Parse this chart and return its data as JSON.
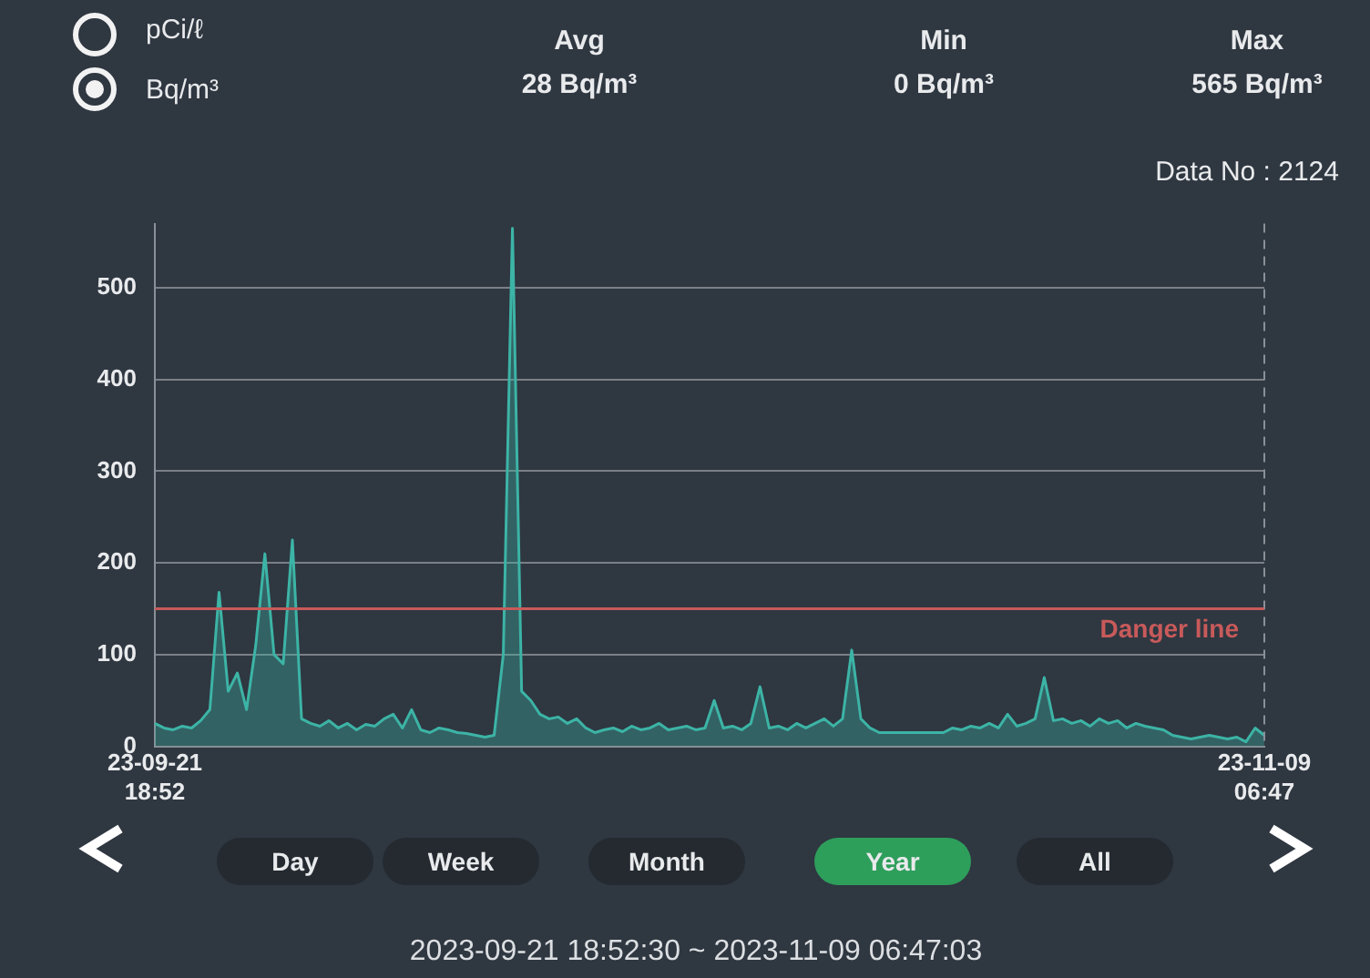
{
  "chart_data": {
    "type": "area",
    "categories": [
      "23-09-21\n18:52",
      null,
      null,
      null,
      null,
      null,
      null,
      null,
      null,
      null,
      null,
      null,
      null,
      null,
      null,
      null,
      null,
      null,
      null,
      null,
      null,
      null,
      null,
      null,
      null,
      null,
      null,
      null,
      null,
      null,
      null,
      null,
      null,
      null,
      null,
      null,
      null,
      null,
      null,
      null,
      null,
      null,
      null,
      null,
      null,
      null,
      null,
      null,
      null,
      null,
      null,
      null,
      null,
      null,
      null,
      null,
      null,
      null,
      null,
      null,
      null,
      null,
      null,
      null,
      null,
      null,
      null,
      null,
      null,
      null,
      null,
      null,
      null,
      null,
      null,
      null,
      null,
      null,
      null,
      null,
      null,
      null,
      null,
      null,
      null,
      null,
      null,
      null,
      null,
      null,
      null,
      null,
      null,
      null,
      null,
      null,
      null,
      null,
      null,
      null,
      null,
      null,
      null,
      null,
      null,
      null,
      null,
      null,
      null,
      null,
      null,
      null,
      null,
      null,
      null,
      null,
      null,
      null,
      null,
      null,
      null,
      "23-11-09\n06:47"
    ],
    "series": [
      {
        "color": "#3cb4a6",
        "values": [
          25,
          20,
          18,
          22,
          20,
          28,
          40,
          168,
          60,
          80,
          40,
          110,
          210,
          100,
          90,
          225,
          30,
          25,
          22,
          28,
          20,
          25,
          18,
          24,
          22,
          30,
          35,
          20,
          40,
          18,
          15,
          20,
          18,
          15,
          14,
          12,
          10,
          12,
          100,
          565,
          60,
          50,
          35,
          30,
          32,
          25,
          30,
          20,
          15,
          18,
          20,
          16,
          22,
          18,
          20,
          25,
          18,
          20,
          22,
          18,
          20,
          50,
          20,
          22,
          18,
          25,
          65,
          20,
          22,
          18,
          25,
          20,
          25,
          30,
          22,
          30,
          105,
          30,
          20,
          15,
          15,
          15,
          15,
          15,
          15,
          15,
          15,
          20,
          18,
          22,
          20,
          25,
          20,
          35,
          22,
          25,
          30,
          75,
          28,
          30,
          25,
          28,
          22,
          30,
          25,
          28,
          20,
          25,
          22,
          20,
          18,
          12,
          10,
          8,
          10,
          12,
          10,
          8,
          10,
          5,
          20,
          12
        ]
      }
    ],
    "ylim": [
      0,
      570
    ],
    "yticks": [
      0,
      100,
      200,
      300,
      400,
      500
    ],
    "grid": "y",
    "ref_lines": [
      {
        "axis": "y",
        "value": 150,
        "label": "Danger line",
        "color": "#c85a5a"
      }
    ],
    "annotations": [
      "pCi/ℓ",
      "Bq/m³",
      "Avg",
      "28 Bq/m³",
      "Min",
      "0 Bq/m³",
      "Max",
      "565 Bq/m³",
      "Data No : 2124",
      "Day",
      "Week",
      "Month",
      "Year",
      "All",
      "2023-09-21 18:52:30 ~ 2023-11-09 06:47:03"
    ]
  }
}
